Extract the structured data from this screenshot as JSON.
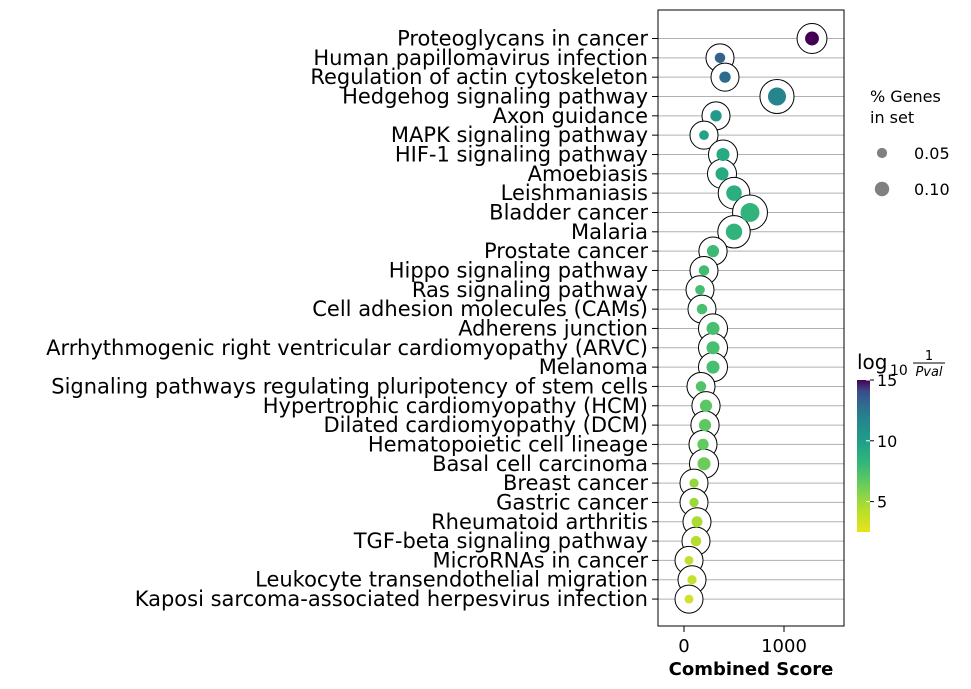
{
  "chart_data": {
    "type": "scatter",
    "title": "",
    "xlabel": "Combined Score",
    "ylabel": "",
    "xlim": [
      -260,
      1600
    ],
    "xticks": [
      0,
      1000
    ],
    "xtick_labels": [
      "0",
      "1000"
    ],
    "grid": "horizontal",
    "legend_size": {
      "title": "% Genes\nin set",
      "title_lines": [
        "% Genes",
        "in set"
      ],
      "entries": [
        {
          "label": "0.05",
          "value": 0.05
        },
        {
          "label": "0.10",
          "value": 0.1
        }
      ],
      "position": "top-right"
    },
    "colorbar": {
      "title": "log10 1/Pval",
      "title_main": "log",
      "title_sub": "10",
      "title_num": "1",
      "title_den": "Pval",
      "min": 2.5,
      "max": 15,
      "ticks": [
        5,
        10,
        15
      ],
      "tick_labels": [
        "5",
        "10",
        "15"
      ],
      "colormap": "viridis_r",
      "position": "right"
    },
    "categories": [
      "Proteoglycans in cancer",
      "Human papillomavirus infection",
      "Regulation of actin cytoskeleton",
      "Hedgehog signaling pathway",
      "Axon guidance",
      "MAPK signaling pathway",
      "HIF-1 signaling pathway",
      "Amoebiasis",
      "Leishmaniasis",
      "Bladder cancer",
      "Malaria",
      "Prostate cancer",
      "Hippo signaling pathway",
      "Ras signaling pathway",
      "Cell adhesion molecules (CAMs)",
      "Adherens junction",
      "Arrhythmogenic right ventricular cardiomyopathy (ARVC)",
      "Melanoma",
      "Signaling pathways regulating pluripotency of stem cells",
      "Hypertrophic cardiomyopathy (HCM)",
      "Dilated cardiomyopathy (DCM)",
      "Hematopoietic cell lineage",
      "Basal cell carcinoma",
      "Breast cancer",
      "Gastric cancer",
      "Rheumatoid arthritis",
      "TGF-beta signaling pathway",
      "MicroRNAs in cancer",
      "Leukocyte transendothelial migration",
      "Kaposi sarcoma-associated herpesvirus infection"
    ],
    "points": [
      {
        "x": 1280,
        "size": 0.07,
        "log10_inv_p": 15.0
      },
      {
        "x": 360,
        "size": 0.03,
        "log10_inv_p": 11.0
      },
      {
        "x": 410,
        "size": 0.04,
        "log10_inv_p": 10.5
      },
      {
        "x": 930,
        "size": 0.12,
        "log10_inv_p": 9.3
      },
      {
        "x": 320,
        "size": 0.04,
        "log10_inv_p": 8.2
      },
      {
        "x": 200,
        "size": 0.02,
        "log10_inv_p": 7.8
      },
      {
        "x": 390,
        "size": 0.06,
        "log10_inv_p": 7.3
      },
      {
        "x": 380,
        "size": 0.06,
        "log10_inv_p": 7.3
      },
      {
        "x": 500,
        "size": 0.09,
        "log10_inv_p": 7.0
      },
      {
        "x": 660,
        "size": 0.13,
        "log10_inv_p": 6.8
      },
      {
        "x": 500,
        "size": 0.1,
        "log10_inv_p": 6.8
      },
      {
        "x": 290,
        "size": 0.05,
        "log10_inv_p": 6.5
      },
      {
        "x": 200,
        "size": 0.03,
        "log10_inv_p": 6.4
      },
      {
        "x": 160,
        "size": 0.02,
        "log10_inv_p": 6.3
      },
      {
        "x": 180,
        "size": 0.03,
        "log10_inv_p": 6.2
      },
      {
        "x": 290,
        "size": 0.06,
        "log10_inv_p": 6.2
      },
      {
        "x": 290,
        "size": 0.06,
        "log10_inv_p": 6.2
      },
      {
        "x": 290,
        "size": 0.06,
        "log10_inv_p": 6.2
      },
      {
        "x": 170,
        "size": 0.03,
        "log10_inv_p": 5.9
      },
      {
        "x": 220,
        "size": 0.05,
        "log10_inv_p": 5.7
      },
      {
        "x": 210,
        "size": 0.05,
        "log10_inv_p": 5.6
      },
      {
        "x": 190,
        "size": 0.04,
        "log10_inv_p": 5.5
      },
      {
        "x": 200,
        "size": 0.06,
        "log10_inv_p": 5.3
      },
      {
        "x": 100,
        "size": 0.015,
        "log10_inv_p": 4.5
      },
      {
        "x": 100,
        "size": 0.015,
        "log10_inv_p": 4.3
      },
      {
        "x": 130,
        "size": 0.035,
        "log10_inv_p": 4.0
      },
      {
        "x": 120,
        "size": 0.03,
        "log10_inv_p": 3.8
      },
      {
        "x": 50,
        "size": 0.01,
        "log10_inv_p": 3.6
      },
      {
        "x": 80,
        "size": 0.015,
        "log10_inv_p": 3.5
      },
      {
        "x": 50,
        "size": 0.01,
        "log10_inv_p": 3.3
      }
    ]
  }
}
